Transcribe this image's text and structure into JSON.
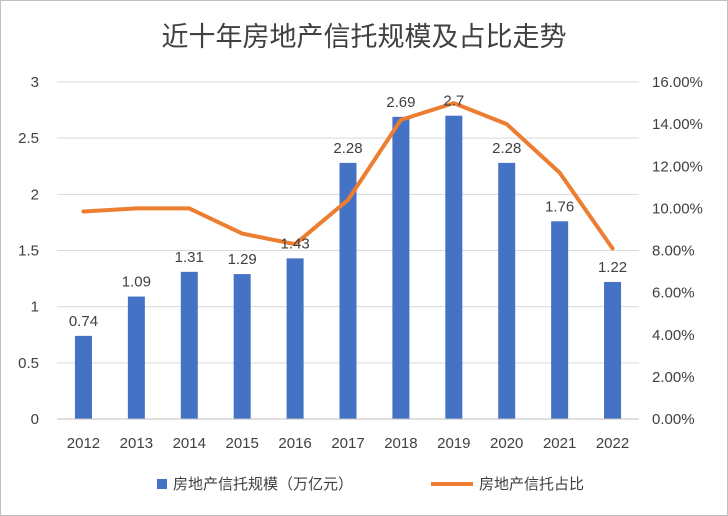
{
  "chart_data": {
    "type": "bar",
    "title": "近十年房地产信托规模及占比走势",
    "categories": [
      "2012",
      "2013",
      "2014",
      "2015",
      "2016",
      "2017",
      "2018",
      "2019",
      "2020",
      "2021",
      "2022"
    ],
    "series": [
      {
        "name": "房地产信托规模（万亿元）",
        "type": "bar",
        "axis": "left",
        "color": "#4472C4",
        "values": [
          0.74,
          1.09,
          1.31,
          1.29,
          1.43,
          2.28,
          2.69,
          2.7,
          2.28,
          1.76,
          1.22
        ],
        "labels": [
          "0.74",
          "1.09",
          "1.31",
          "1.29",
          "1.43",
          "2.28",
          "2.69",
          "2.7",
          "2.28",
          "1.76",
          "1.22"
        ]
      },
      {
        "name": "房地产信托占比",
        "type": "line",
        "axis": "right",
        "color": "#ED7D31",
        "values": [
          9.85,
          10.0,
          10.0,
          8.8,
          8.3,
          10.4,
          14.2,
          15.0,
          14.0,
          11.7,
          8.1
        ]
      }
    ],
    "y_left": {
      "lim": [
        0,
        3
      ],
      "ticks": [
        "0",
        "0.5",
        "1",
        "1.5",
        "2",
        "2.5",
        "3"
      ]
    },
    "y_right": {
      "lim": [
        0,
        16
      ],
      "ticks": [
        "0.00%",
        "2.00%",
        "4.00%",
        "6.00%",
        "8.00%",
        "10.00%",
        "12.00%",
        "14.00%",
        "16.00%"
      ]
    },
    "grid": true,
    "legend_position": "bottom"
  }
}
